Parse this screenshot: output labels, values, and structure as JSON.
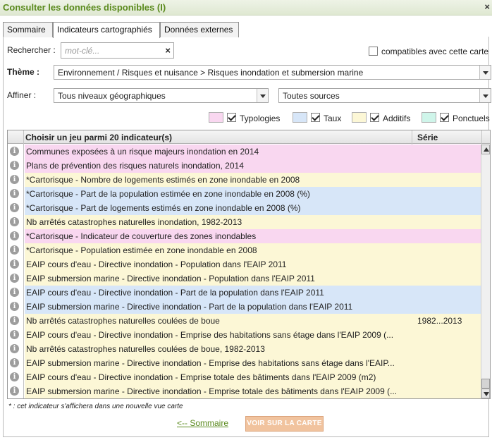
{
  "window": {
    "title": "Consulter les données disponibles (I)",
    "close_label": "×"
  },
  "tabs": [
    "Sommaire",
    "Indicateurs cartographiés",
    "Données externes"
  ],
  "search": {
    "label": "Rechercher :",
    "placeholder": "mot-clé...",
    "clear_label": "×"
  },
  "compatible": {
    "label": "compatibles avec cette carte",
    "checked": false
  },
  "theme": {
    "label": "Thème :",
    "value": "Environnement / Risques et nuisance > Risques inondation et submersion marine"
  },
  "refine": {
    "label": "Affiner :",
    "level_value": "Tous niveaux géographiques",
    "source_value": "Toutes sources"
  },
  "legend": [
    {
      "label": "Typologies",
      "color": "#f9d7f0",
      "checked": true
    },
    {
      "label": "Taux",
      "color": "#d7e6f8",
      "checked": true
    },
    {
      "label": "Additifs",
      "color": "#fcf7d6",
      "checked": true
    },
    {
      "label": "Ponctuels",
      "color": "#cff5ea",
      "checked": true
    }
  ],
  "grid": {
    "col_indicator": "Choisir un jeu parmi 20 indicateur(s)",
    "col_serie": "Série",
    "info_glyph": "i",
    "rows": [
      {
        "name": "Communes exposées à un risque majeurs inondation en 2014",
        "serie": "",
        "type": "Typologies"
      },
      {
        "name": "Plans de prévention des risques naturels inondation, 2014",
        "serie": "",
        "type": "Typologies"
      },
      {
        "name": "*Cartorisque - Nombre de logements estimés en zone inondable en 2008",
        "serie": "",
        "type": "Additifs"
      },
      {
        "name": "*Cartorisque - Part de la population estimée en zone inondable en 2008 (%)",
        "serie": "",
        "type": "Taux"
      },
      {
        "name": "*Cartorisque - Part de logements estimés en zone inondable en 2008 (%)",
        "serie": "",
        "type": "Taux"
      },
      {
        "name": "Nb arrêtés catastrophes naturelles inondation, 1982-2013",
        "serie": "",
        "type": "Additifs"
      },
      {
        "name": "*Cartorisque - Indicateur de couverture des zones inondables",
        "serie": "",
        "type": "Typologies"
      },
      {
        "name": "*Cartorisque - Population estimée en zone inondable en 2008",
        "serie": "",
        "type": "Additifs"
      },
      {
        "name": "EAIP cours d'eau - Directive inondation - Population dans l'EAIP 2011",
        "serie": "",
        "type": "Additifs"
      },
      {
        "name": "EAIP submersion marine - Directive inondation - Population dans l'EAIP 2011",
        "serie": "",
        "type": "Additifs"
      },
      {
        "name": "EAIP cours d'eau - Directive inondation - Part de la population dans l'EAIP 2011",
        "serie": "",
        "type": "Taux"
      },
      {
        "name": "EAIP submersion marine - Directive inondation - Part de la population dans l'EAIP 2011",
        "serie": "",
        "type": "Taux"
      },
      {
        "name": "Nb arrêtés catastrophes naturelles coulées de boue",
        "serie": "1982...2013",
        "type": "Additifs"
      },
      {
        "name": "EAIP cours d'eau - Directive inondation - Emprise des habitations sans étage dans l'EAIP 2009 (...",
        "serie": "",
        "type": "Additifs"
      },
      {
        "name": "Nb arrêtés catastrophes naturelles coulées de boue, 1982-2013",
        "serie": "",
        "type": "Additifs"
      },
      {
        "name": "EAIP submersion marine - Directive inondation - Emprise des habitations sans étage dans l'EAIP...",
        "serie": "",
        "type": "Additifs"
      },
      {
        "name": "EAIP cours d'eau - Directive inondation - Emprise totale des bâtiments dans l'EAIP 2009 (m2)",
        "serie": "",
        "type": "Additifs"
      },
      {
        "name": "EAIP submersion marine - Directive inondation - Emprise totale des bâtiments dans l'EAIP 2009 (...",
        "serie": "",
        "type": "Additifs"
      }
    ]
  },
  "footnote": "* : cet indicateur s'affichera dans une nouvelle vue carte",
  "footer": {
    "back_label": "<-- Sommaire",
    "view_label": "VOIR SUR LA CARTE"
  }
}
